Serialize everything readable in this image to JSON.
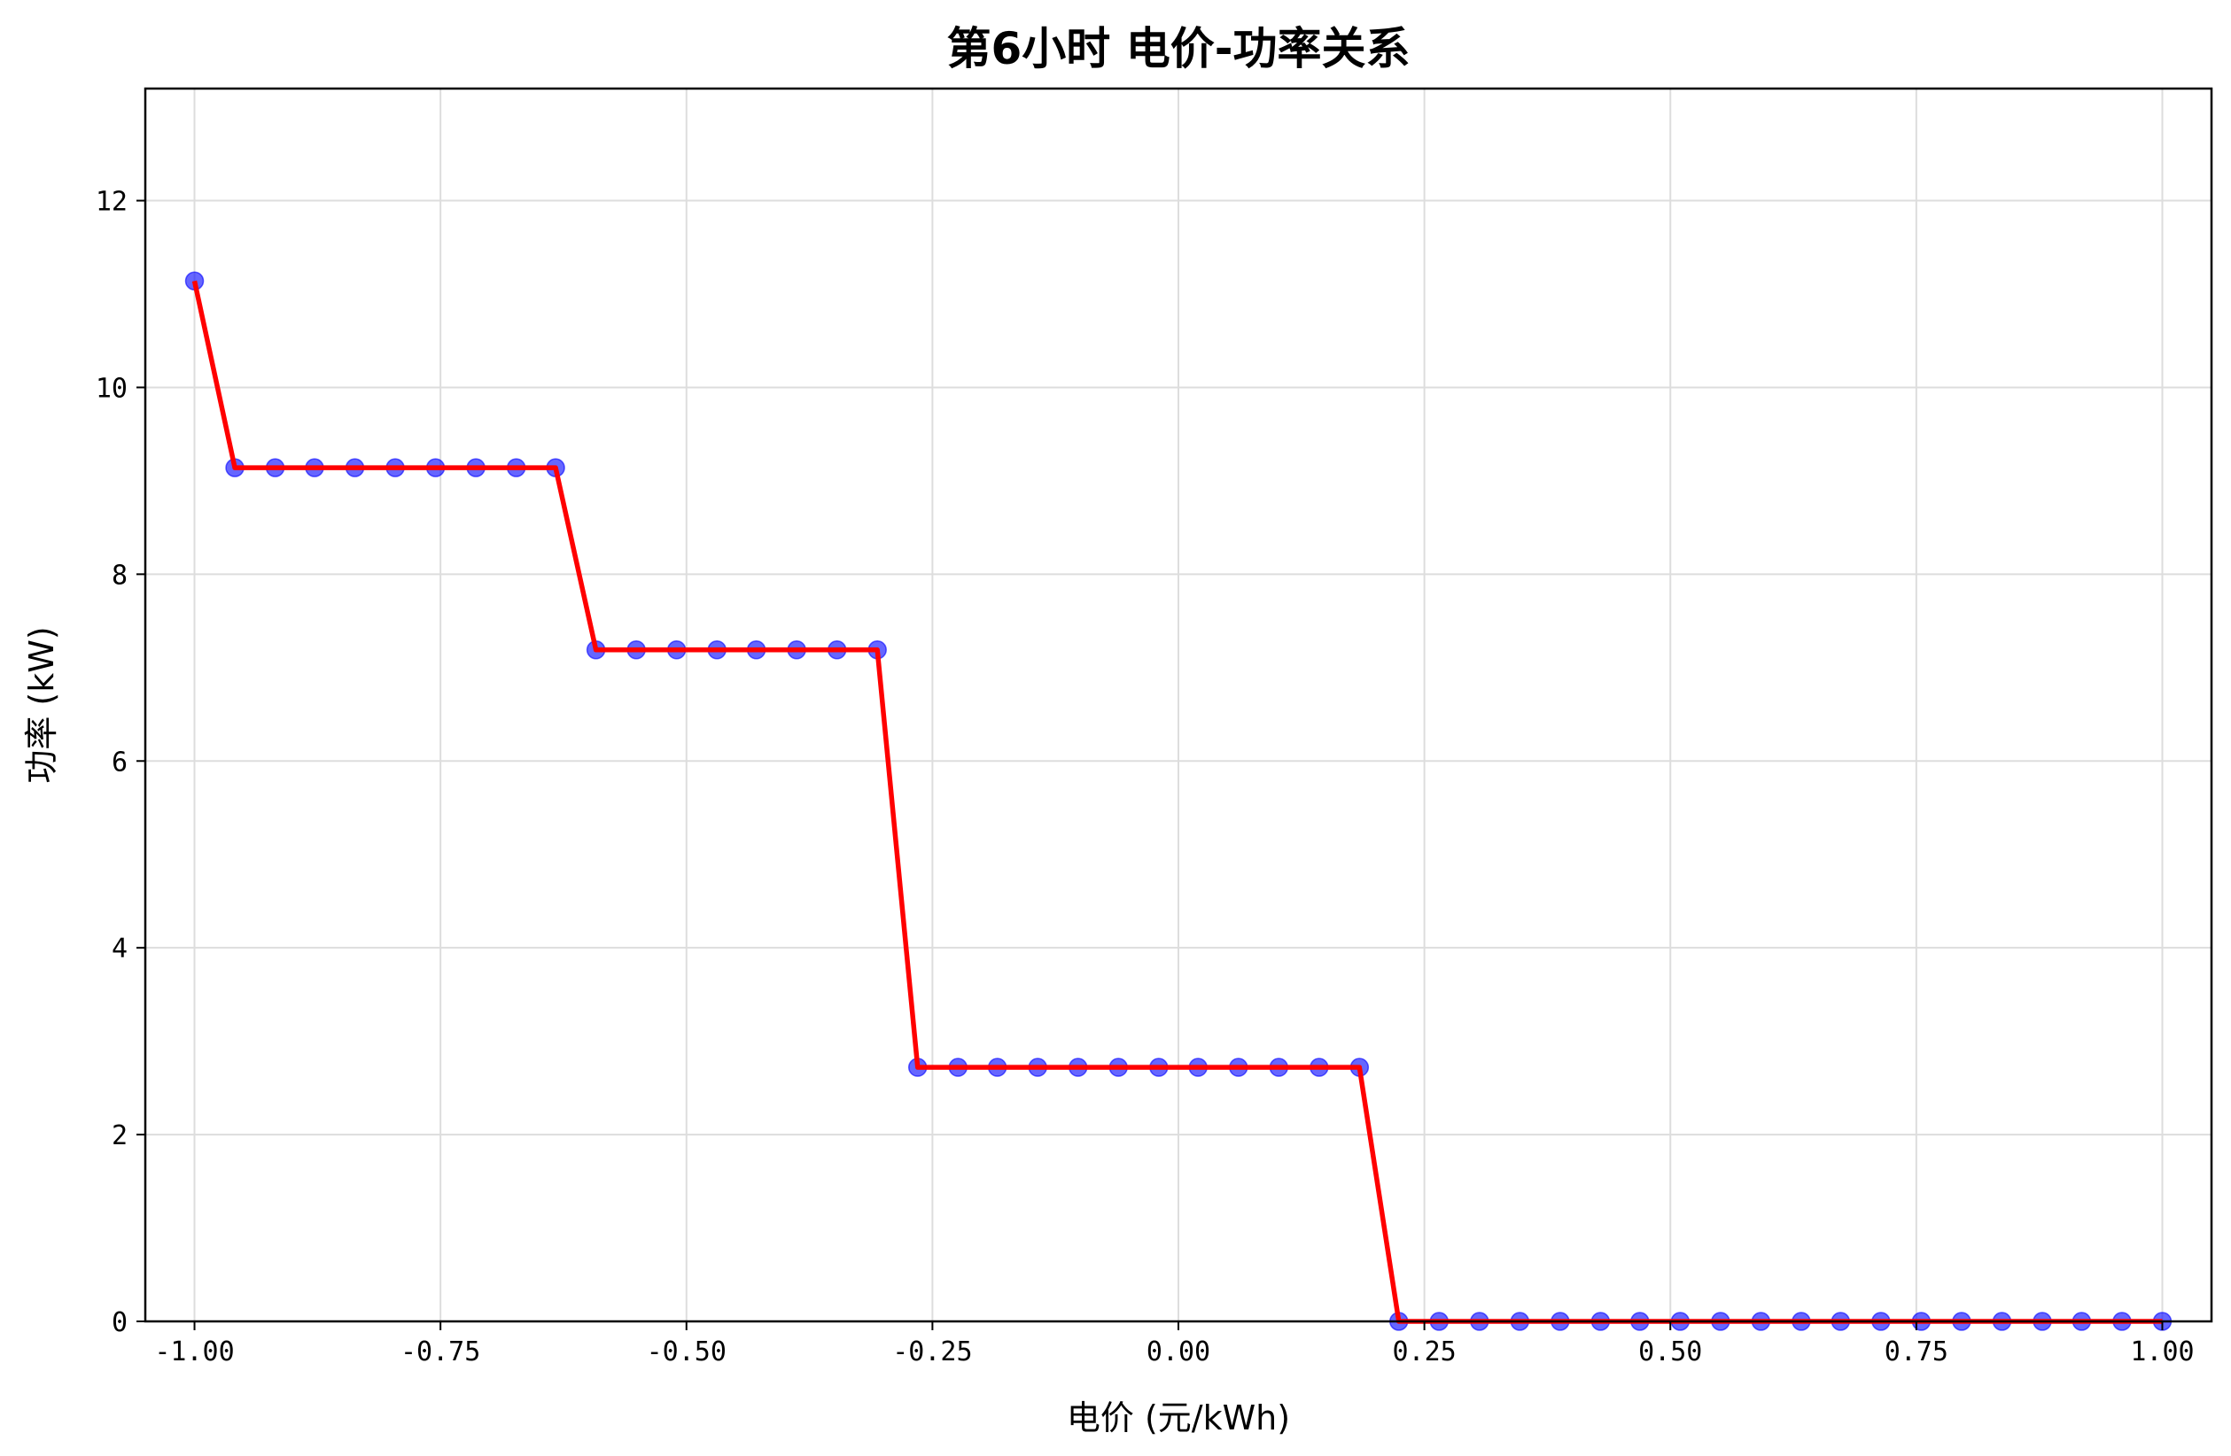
{
  "chart_data": {
    "type": "line",
    "title": "第6小时 电价-功率关系",
    "xlabel": "电价 (元/kWh)",
    "ylabel": "功率 (kW)",
    "xlim": [
      -1.05,
      1.05
    ],
    "ylim": [
      0,
      13.2
    ],
    "x_ticks": [
      "-1.00",
      "-0.75",
      "-0.50",
      "-0.25",
      "0.00",
      "0.25",
      "0.50",
      "0.75",
      "1.00"
    ],
    "x_tick_values": [
      -1.0,
      -0.75,
      -0.5,
      -0.25,
      0.0,
      0.25,
      0.5,
      0.75,
      1.0
    ],
    "y_ticks": [
      "0",
      "2",
      "4",
      "6",
      "8",
      "10",
      "12"
    ],
    "y_tick_values": [
      0,
      2,
      4,
      6,
      8,
      10,
      12
    ],
    "grid": true,
    "line_color": "#ff0000",
    "marker_color": "#0000ff",
    "series": [
      {
        "x": [
          -1.0,
          -0.959,
          -0.918,
          -0.878,
          -0.837,
          -0.796,
          -0.755,
          -0.714,
          -0.673,
          -0.633,
          -0.592,
          -0.551,
          -0.51,
          -0.469,
          -0.429,
          -0.388,
          -0.347,
          -0.306,
          -0.265,
          -0.224,
          -0.184,
          -0.143,
          -0.102,
          -0.061,
          -0.02,
          0.02,
          0.061,
          0.102,
          0.143,
          0.184,
          0.224,
          0.265,
          0.306,
          0.347,
          0.388,
          0.429,
          0.469,
          0.51,
          0.551,
          0.592,
          0.633,
          0.673,
          0.714,
          0.755,
          0.796,
          0.837,
          0.878,
          0.918,
          0.959,
          1.0
        ],
        "y": [
          11.14,
          9.14,
          9.14,
          9.14,
          9.14,
          9.14,
          9.14,
          9.14,
          9.14,
          9.14,
          7.19,
          7.19,
          7.19,
          7.19,
          7.19,
          7.19,
          7.19,
          7.19,
          2.72,
          2.72,
          2.72,
          2.72,
          2.72,
          2.72,
          2.72,
          2.72,
          2.72,
          2.72,
          2.72,
          2.72,
          0,
          0,
          0,
          0,
          0,
          0,
          0,
          0,
          0,
          0,
          0,
          0,
          0,
          0,
          0,
          0,
          0,
          0,
          0,
          0
        ]
      }
    ]
  }
}
